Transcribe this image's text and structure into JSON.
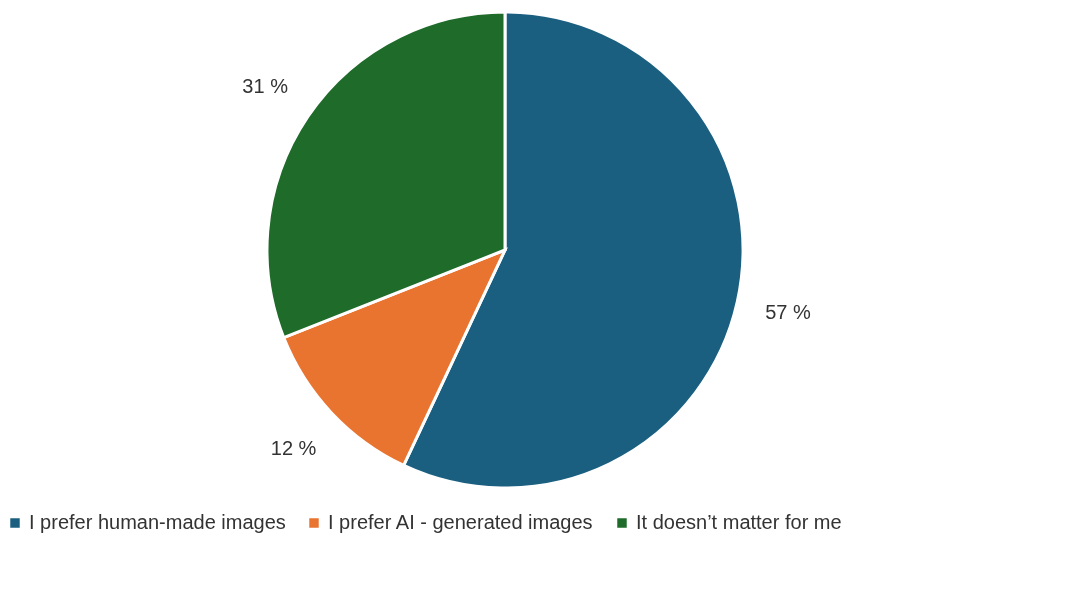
{
  "chart_data": {
    "type": "pie",
    "categories": [
      "I prefer human-made images",
      "I prefer AI - generated images",
      "It doesn’t matter for me"
    ],
    "values": [
      57,
      12,
      31
    ],
    "colors": [
      "#1a5f80",
      "#e87430",
      "#1e6b2a"
    ],
    "value_labels": [
      "57 %",
      "12 %",
      "31 %"
    ],
    "legend": "bottom"
  }
}
